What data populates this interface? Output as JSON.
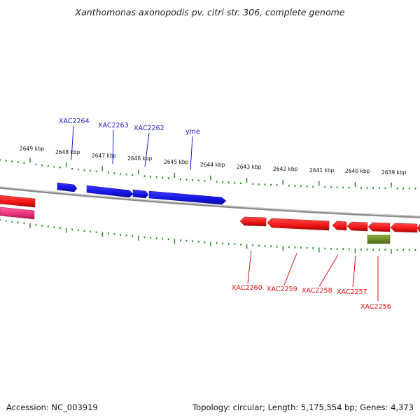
{
  "title": "Xanthomonas axonopodis pv. citri str. 306, complete genome",
  "footer": {
    "accession": "Accession: NC_003919",
    "summary": "Topology: circular; Length: 5,175,554 bp; Genes: 4,373"
  },
  "colors": {
    "forward_gene": "#1f1fe6",
    "reverse_gene": "#f01414",
    "pink_gene": "#e8307a",
    "olive_gene": "#6b8e23",
    "backbone": "#8a8a8a",
    "tick": "#1a8a1a",
    "forward_label": "#1a1ad6",
    "reverse_label": "#e01010"
  },
  "kbp_labels": [
    "2649 kbp",
    "2648 kbp",
    "2647 kbp",
    "2646 kbp",
    "2645 kbp",
    "2644 kbp",
    "2643 kbp",
    "2642 kbp",
    "2641 kbp",
    "2640 kbp",
    "2639 kbp"
  ],
  "forward_genes": [
    {
      "label": "XAC2264"
    },
    {
      "label": "XAC2263"
    },
    {
      "label": "XAC2262"
    },
    {
      "label": "yme"
    }
  ],
  "reverse_genes": [
    {
      "label": "XAC2260"
    },
    {
      "label": "XAC2259"
    },
    {
      "label": "XAC2258"
    },
    {
      "label": "XAC2257"
    },
    {
      "label": "XAC2256"
    }
  ]
}
